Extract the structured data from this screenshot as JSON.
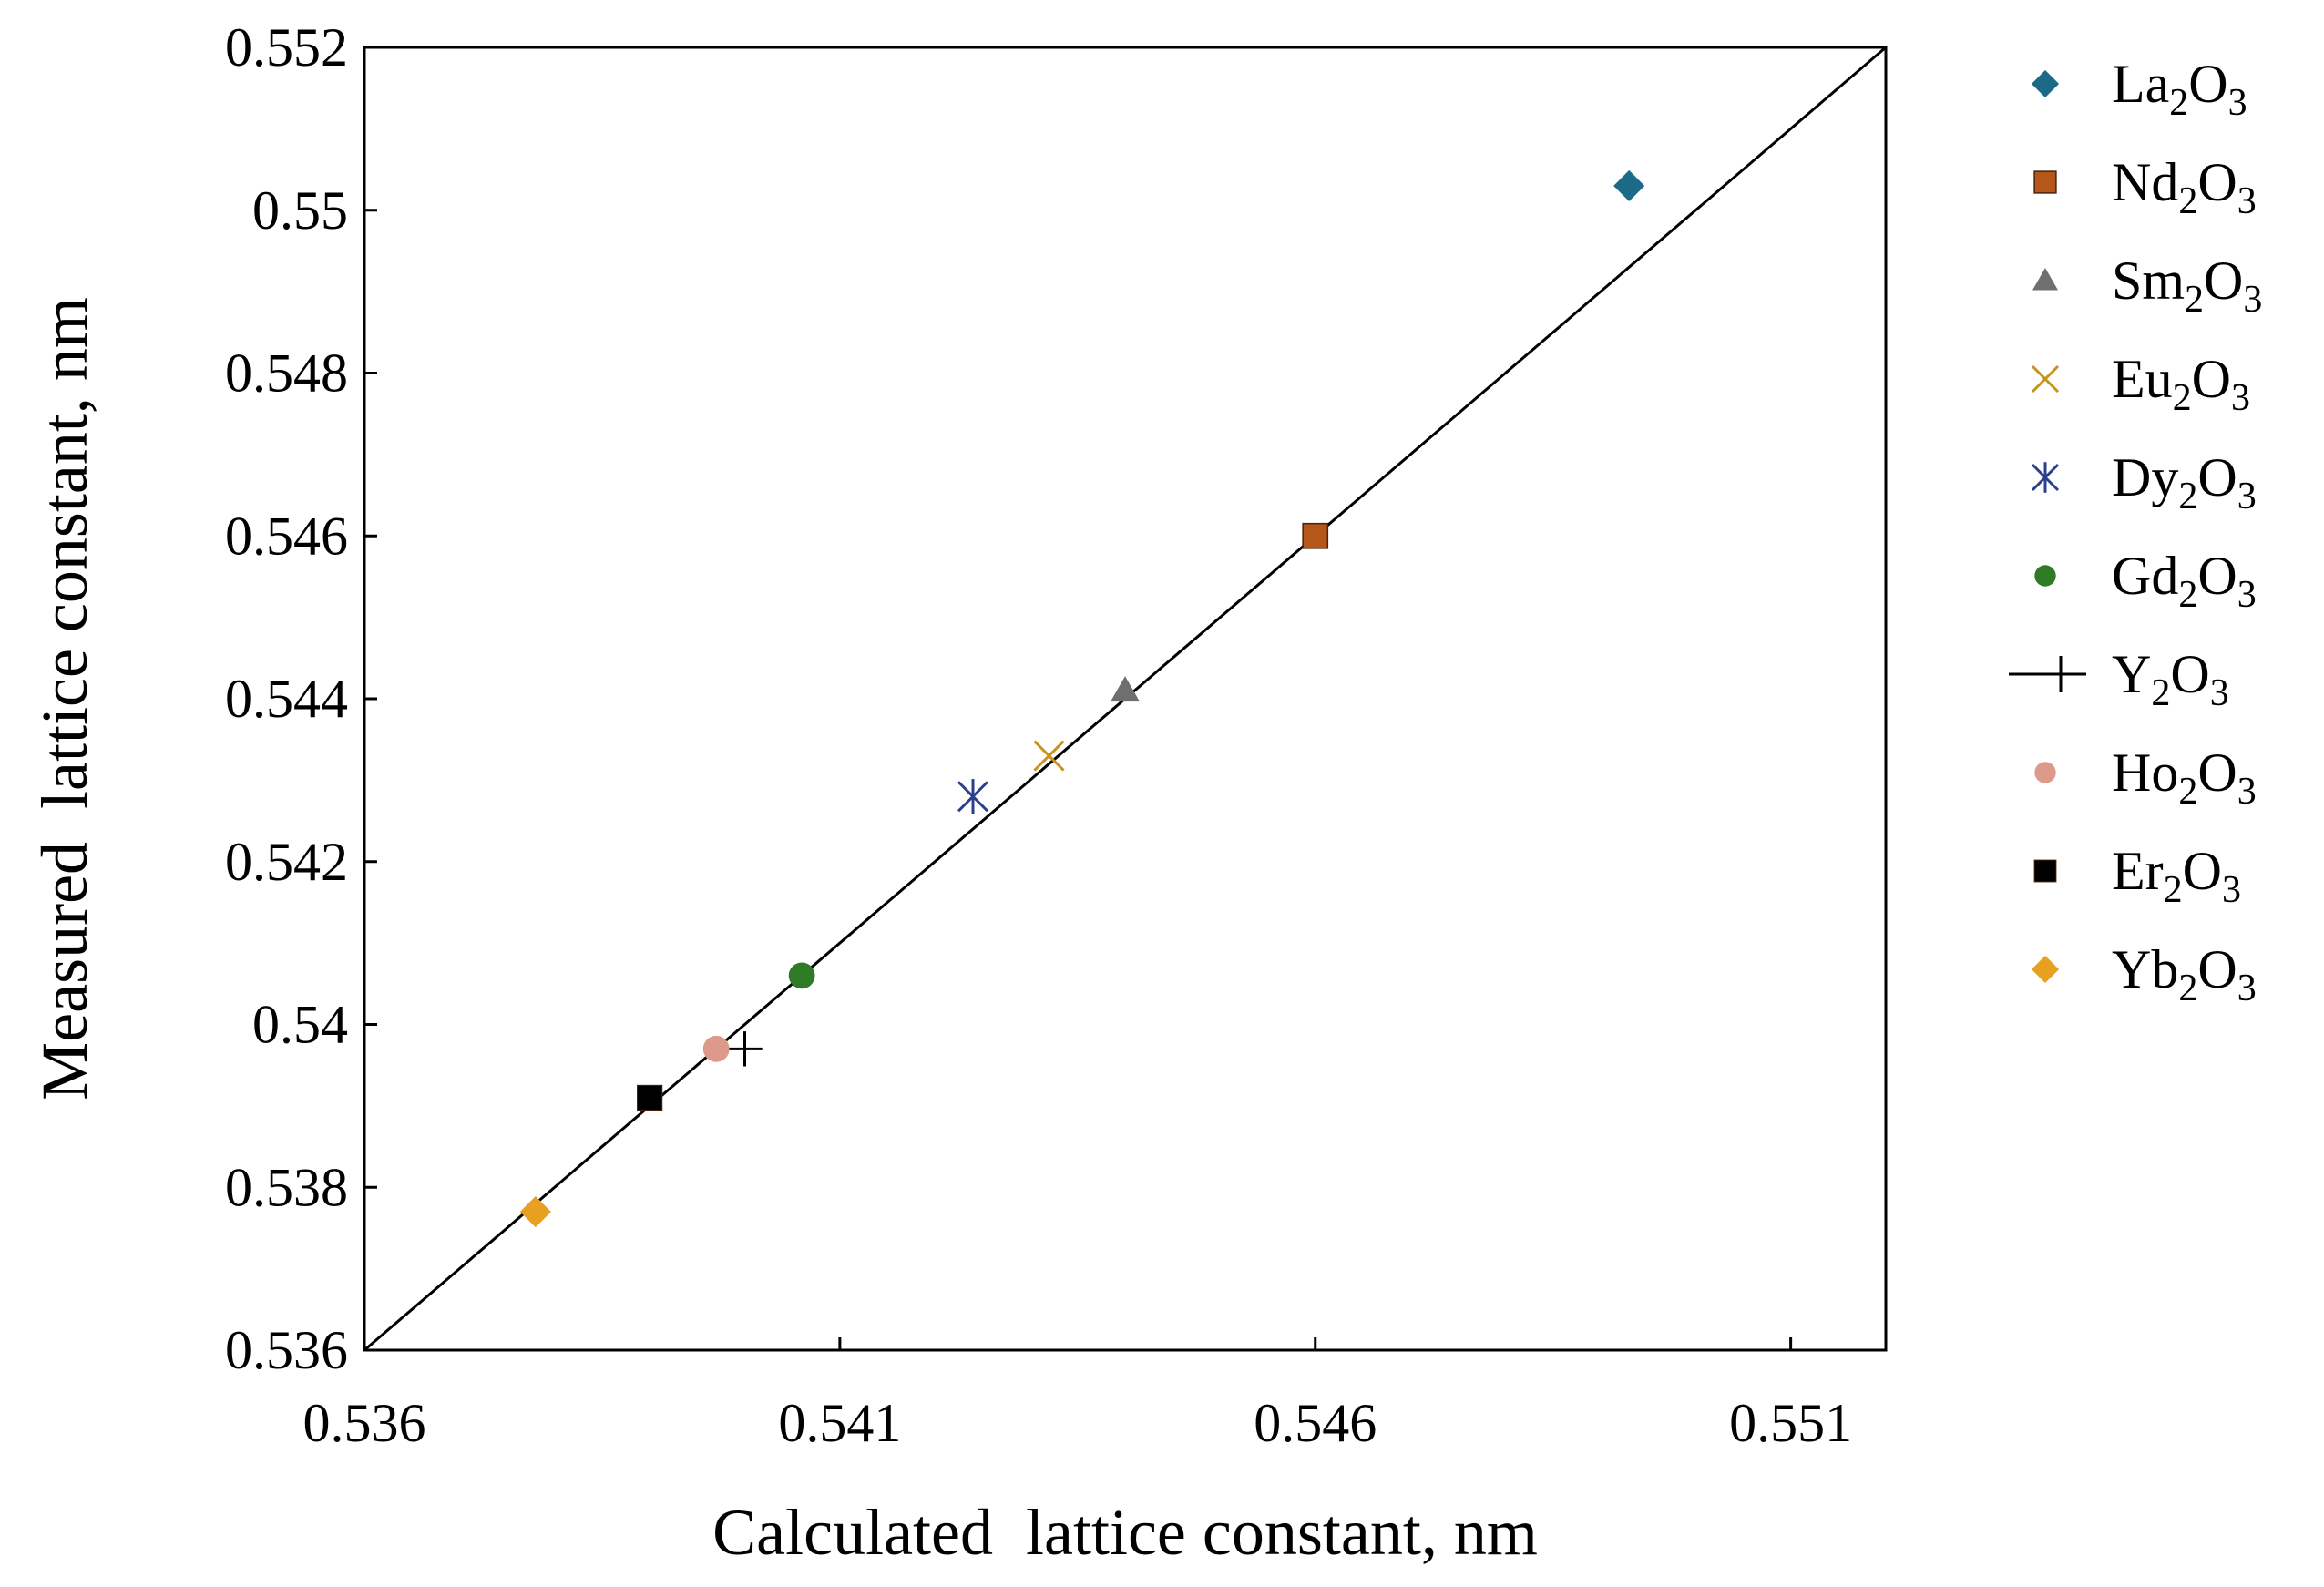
{
  "chart_data": {
    "type": "scatter",
    "title": "",
    "xlabel": "Calculated  lattice constant, nm",
    "ylabel": "Measured  lattice constant, nm",
    "xlim": [
      0.536,
      0.552
    ],
    "ylim": [
      0.536,
      0.552
    ],
    "x_ticks": [
      0.536,
      0.541,
      0.546,
      0.551
    ],
    "x_tick_labels": [
      "0.536",
      "0.541",
      "0.546",
      "0.551"
    ],
    "y_ticks": [
      0.536,
      0.538,
      0.54,
      0.542,
      0.544,
      0.546,
      0.548,
      0.55,
      0.552
    ],
    "y_tick_labels": [
      "0.536",
      "0.538",
      "0.54",
      "0.542",
      "0.544",
      "0.546",
      "0.548",
      "0.55",
      "0.552"
    ],
    "reference_line": {
      "name": "y = x",
      "from": [
        0.536,
        0.536
      ],
      "to": [
        0.552,
        0.552
      ]
    },
    "legend_position": "right",
    "series": [
      {
        "name": "La2O3",
        "element": "La",
        "marker": "diamond",
        "color": "#1b6a88",
        "x": 0.5493,
        "y": 0.5503
      },
      {
        "name": "Nd2O3",
        "element": "Nd",
        "marker": "square",
        "color": "#b5561a",
        "x": 0.546,
        "y": 0.546
      },
      {
        "name": "Sm2O3",
        "element": "Sm",
        "marker": "triangle",
        "color": "#6f6f6f",
        "x": 0.544,
        "y": 0.5441
      },
      {
        "name": "Eu2O3",
        "element": "Eu",
        "marker": "x",
        "color": "#c8921e",
        "x": 0.5432,
        "y": 0.5433
      },
      {
        "name": "Dy2O3",
        "element": "Dy",
        "marker": "star",
        "color": "#2b3f8f",
        "x": 0.5424,
        "y": 0.5428
      },
      {
        "name": "Gd2O3",
        "element": "Gd",
        "marker": "circle",
        "color": "#2e7a25",
        "x": 0.5406,
        "y": 0.5406
      },
      {
        "name": "Y2O3",
        "element": "Y",
        "marker": "plus",
        "color": "#000000",
        "x": 0.54,
        "y": 0.5397
      },
      {
        "name": "Ho2O3",
        "element": "Ho",
        "marker": "circle",
        "color": "#dd9a8a",
        "x": 0.5397,
        "y": 0.5397
      },
      {
        "name": "Er2O3",
        "element": "Er",
        "marker": "square",
        "color": "#000000",
        "x": 0.539,
        "y": 0.5391
      },
      {
        "name": "Yb2O3",
        "element": "Yb",
        "marker": "diamond",
        "color": "#e8a020",
        "x": 0.5378,
        "y": 0.5377
      }
    ]
  }
}
